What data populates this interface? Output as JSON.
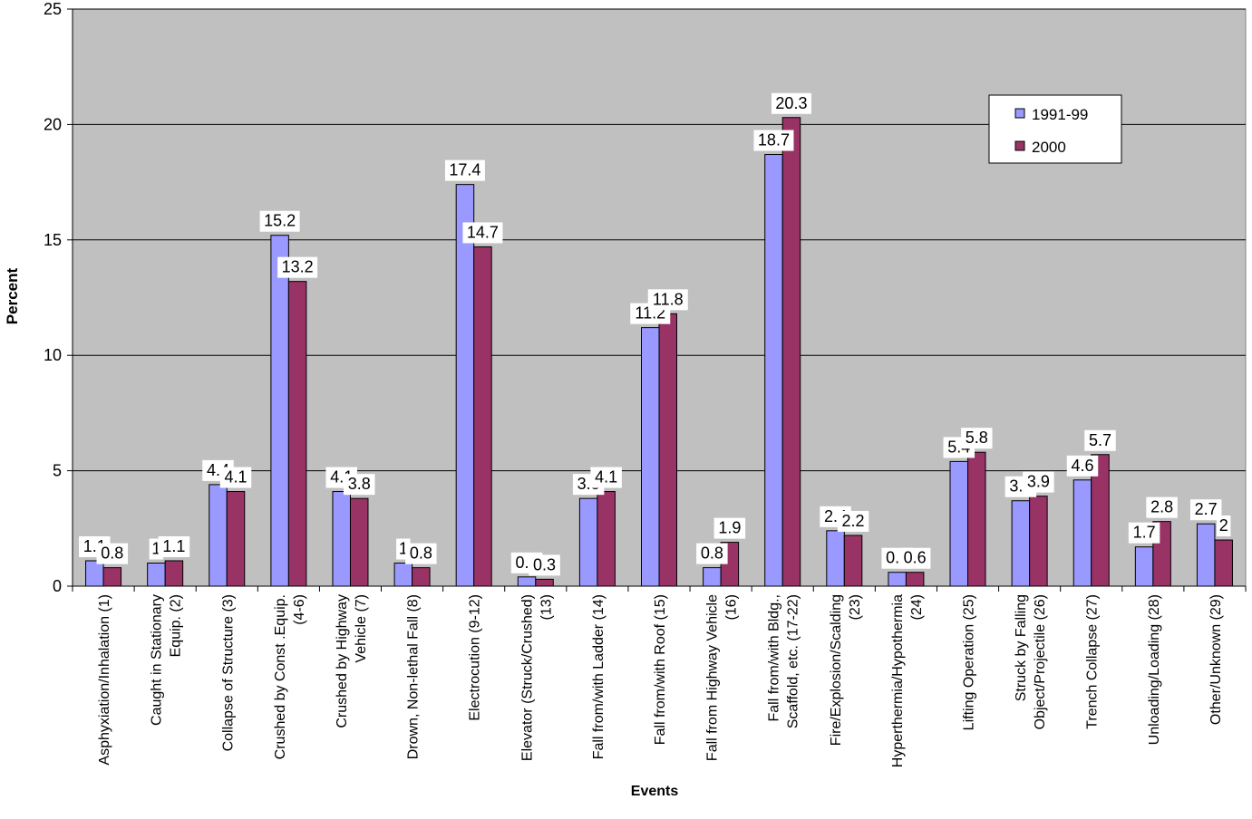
{
  "chart_data": {
    "type": "bar",
    "title": "",
    "xlabel": "Events",
    "ylabel": "Percent",
    "ylim": [
      0,
      25
    ],
    "yticks": [
      0,
      5,
      10,
      15,
      20,
      25
    ],
    "grid": true,
    "legend_position": "top-right",
    "plot_background": "#c0c0c0",
    "categories": [
      "Asphyxiation/Inhalation (1)",
      "Caught in Stationary Equip. (2)",
      "Collapse of Structure (3)",
      "Crushed by Const .Equip. (4-6)",
      "Crushed by Highway Vehicle (7)",
      "Drown, Non-lethal Fall (8)",
      "Electrocution (9-12)",
      "Elevator (Struck/Crushed) (13)",
      "Fall from/with Ladder (14)",
      "Fall from/with Roof (15)",
      "Fall from Highway Vehicle (16)",
      "Fall from/with Bldg., Scaffold, etc. (17-22)",
      "Fire/Explosion/Scalding (23)",
      "Hyperthermia/Hypothermia (24)",
      "Lifting Operation (25)",
      "Struck by Falling Object/Projectile (26)",
      "Trench Collapse (27)",
      "Unloading/Loading (28)",
      "Other/Unknown (29)"
    ],
    "category_lines": [
      [
        "Asphyxiation/Inhalation (1)"
      ],
      [
        "Caught in Stationary",
        "Equip. (2)"
      ],
      [
        "Collapse of Structure (3)"
      ],
      [
        "Crushed by Const .Equip.",
        "(4-6)"
      ],
      [
        "Crushed by Highway",
        "Vehicle (7)"
      ],
      [
        "Drown, Non-lethal Fall (8)"
      ],
      [
        "Electrocution (9-12)"
      ],
      [
        "Elevator (Struck/Crushed)",
        "(13)"
      ],
      [
        "Fall from/with Ladder (14)"
      ],
      [
        "Fall from/with Roof (15)"
      ],
      [
        "Fall from Highway Vehicle",
        "(16)"
      ],
      [
        "Fall from/with Bldg.,",
        "Scaffold, etc. (17-22)"
      ],
      [
        "Fire/Explosion/Scalding",
        "(23)"
      ],
      [
        "Hyperthermia/Hypothermia",
        "(24)"
      ],
      [
        "Lifting Operation (25)"
      ],
      [
        "Struck by Falling",
        "Object/Projectile (26)"
      ],
      [
        "Trench Collapse (27)"
      ],
      [
        "Unloading/Loading (28)"
      ],
      [
        "Other/Unknown (29)"
      ]
    ],
    "series": [
      {
        "name": "1991-99",
        "color": "#9999ff",
        "values": [
          1.1,
          1,
          4.4,
          15.2,
          4.1,
          1,
          17.4,
          0.4,
          3.8,
          11.2,
          0.8,
          18.7,
          2.4,
          0.6,
          5.4,
          3.7,
          4.6,
          1.7,
          2.7
        ]
      },
      {
        "name": "2000",
        "color": "#993366",
        "values": [
          0.8,
          1.1,
          4.1,
          13.2,
          3.8,
          0.8,
          14.7,
          0.3,
          4.1,
          11.8,
          1.9,
          20.3,
          2.2,
          0.6,
          5.8,
          3.9,
          5.7,
          2.8,
          2
        ]
      }
    ]
  }
}
